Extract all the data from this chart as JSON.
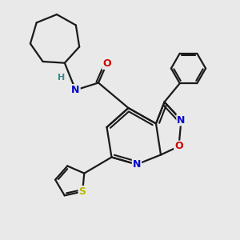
{
  "bg_color": "#e9e9e9",
  "bond_color": "#1a1a1a",
  "atom_colors": {
    "N": "#0000cc",
    "O": "#cc0000",
    "S": "#b8b800",
    "H": "#3a8a8a",
    "C": "#1a1a1a"
  },
  "figsize": [
    3.0,
    3.0
  ],
  "dpi": 100
}
